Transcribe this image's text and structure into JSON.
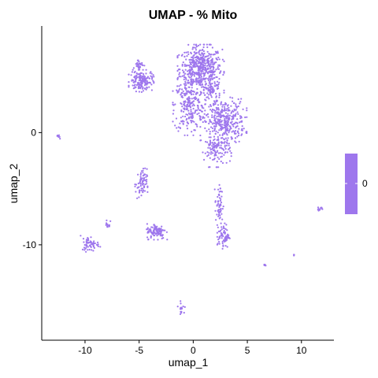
{
  "chart_data": {
    "type": "scatter",
    "title": "UMAP - % Mito",
    "xlabel": "umap_1",
    "ylabel": "umap_2",
    "xlim": [
      -14,
      13
    ],
    "ylim": [
      -18.5,
      9.5
    ],
    "x_ticks": [
      -10,
      -5,
      0,
      5,
      10
    ],
    "x_tick_labels": [
      "-10",
      "-5",
      "0",
      "5",
      "10"
    ],
    "y_ticks": [
      -10,
      0
    ],
    "y_tick_labels": [
      "-10",
      "0"
    ],
    "grid": false,
    "point_color": "#9e77ed",
    "legend": {
      "position": "right",
      "type": "colorbar",
      "labels": [
        "0"
      ],
      "color": "#9e77ed"
    },
    "clusters": [
      {
        "name": "c1",
        "cx": 0.7,
        "cy": 5.7,
        "sx": 1.3,
        "sy": 1.3,
        "n": 520
      },
      {
        "name": "c2",
        "cx": -0.4,
        "cy": 2.4,
        "sx": 0.9,
        "sy": 1.6,
        "n": 220
      },
      {
        "name": "c3",
        "cx": 2.8,
        "cy": 1.0,
        "sx": 1.3,
        "sy": 1.3,
        "n": 380
      },
      {
        "name": "c4",
        "cx": 2.2,
        "cy": -1.6,
        "sx": 0.8,
        "sy": 0.9,
        "n": 110
      },
      {
        "name": "c5",
        "cx": 1.8,
        "cy": 3.8,
        "sx": 0.5,
        "sy": 0.6,
        "n": 60
      },
      {
        "name": "c6",
        "cx": -4.8,
        "cy": 4.6,
        "sx": 0.7,
        "sy": 0.6,
        "n": 160
      },
      {
        "name": "c7",
        "cx": -5.0,
        "cy": 6.1,
        "sx": 0.3,
        "sy": 0.3,
        "n": 30
      },
      {
        "name": "c8",
        "cx": -12.5,
        "cy": -0.35,
        "sx": 0.15,
        "sy": 0.12,
        "n": 8
      },
      {
        "name": "c9",
        "cx": -4.8,
        "cy": -4.6,
        "sx": 0.35,
        "sy": 0.9,
        "n": 70
      },
      {
        "name": "c10",
        "cx": 2.4,
        "cy": -6.5,
        "sx": 0.25,
        "sy": 1.2,
        "n": 55
      },
      {
        "name": "c11",
        "cx": 2.8,
        "cy": -9.2,
        "sx": 0.35,
        "sy": 0.7,
        "n": 75
      },
      {
        "name": "c12",
        "cx": -3.4,
        "cy": -8.8,
        "sx": 0.6,
        "sy": 0.45,
        "n": 110
      },
      {
        "name": "c13",
        "cx": -9.5,
        "cy": -9.9,
        "sx": 0.55,
        "sy": 0.45,
        "n": 60
      },
      {
        "name": "c14",
        "cx": -7.9,
        "cy": -8.2,
        "sx": 0.15,
        "sy": 0.4,
        "n": 12
      },
      {
        "name": "c15",
        "cx": -1.1,
        "cy": -15.6,
        "sx": 0.2,
        "sy": 0.35,
        "n": 18
      },
      {
        "name": "c16",
        "cx": 11.7,
        "cy": -6.8,
        "sx": 0.2,
        "sy": 0.1,
        "n": 10
      },
      {
        "name": "c17",
        "cx": 6.6,
        "cy": -11.8,
        "sx": 0.08,
        "sy": 0.08,
        "n": 5
      },
      {
        "name": "c18",
        "cx": 9.3,
        "cy": -10.9,
        "sx": 0.05,
        "sy": 0.05,
        "n": 3
      }
    ]
  }
}
